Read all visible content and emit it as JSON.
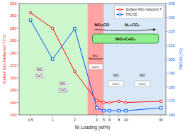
{
  "chart_data": {
    "type": "line",
    "x_label": "Ni Loading (wt%)",
    "y_label": "Surface NiOₓ Reduction T (°C)",
    "y2_label": "TNO,50 (°C)",
    "log": "x",
    "grid": false,
    "legend": "upper right",
    "x": [
      0.5,
      1,
      2,
      4,
      5,
      6,
      8,
      10,
      30
    ],
    "xlim": [
      0.35,
      35.0
    ],
    "xticks": [
      0.5,
      1,
      2,
      4,
      5,
      6,
      8,
      10,
      30
    ],
    "ylim": [
      140,
      320
    ],
    "yticks": [
      140,
      160,
      180,
      200,
      220,
      240,
      260,
      280,
      300,
      320
    ],
    "y2lim": [
      160,
      240
    ],
    "y2ticks": [
      160,
      170,
      180,
      190,
      200,
      210,
      220,
      230,
      240
    ],
    "series": [
      {
        "name": "Surface NiOₓ reduction T",
        "color": "#ff0000",
        "marker": "circle",
        "line_style": "solid",
        "values": [
          305,
          280,
          210,
          163,
          160,
          160,
          162,
          160,
          162
        ]
      },
      {
        "name": "TNO,50",
        "color": "#0055ff",
        "marker": "square",
        "line_style": "solid",
        "axis": "y2",
        "values": [
          228,
          200,
          222,
          165,
          163,
          163,
          163,
          163,
          165
        ]
      }
    ],
    "regions": [
      {
        "from": 0.35,
        "to": 3.0,
        "color": "#90ee90"
      },
      {
        "from": 3.0,
        "to": 5.0,
        "color": "#ff3333"
      },
      {
        "from": 5.0,
        "to": 35.0,
        "color": "#aaccee"
      }
    ],
    "annotations": [
      "NiOₓ",
      "CeO₂",
      "NiOₓ",
      "CeO₂",
      "NiOₓ\nMonolayer",
      "CeO₂",
      "NiO",
      "CeO₂",
      "NiO",
      "CeO₂",
      "NO+CO",
      "N₂+CO₂",
      "NiOₓ/CeO₂"
    ]
  }
}
